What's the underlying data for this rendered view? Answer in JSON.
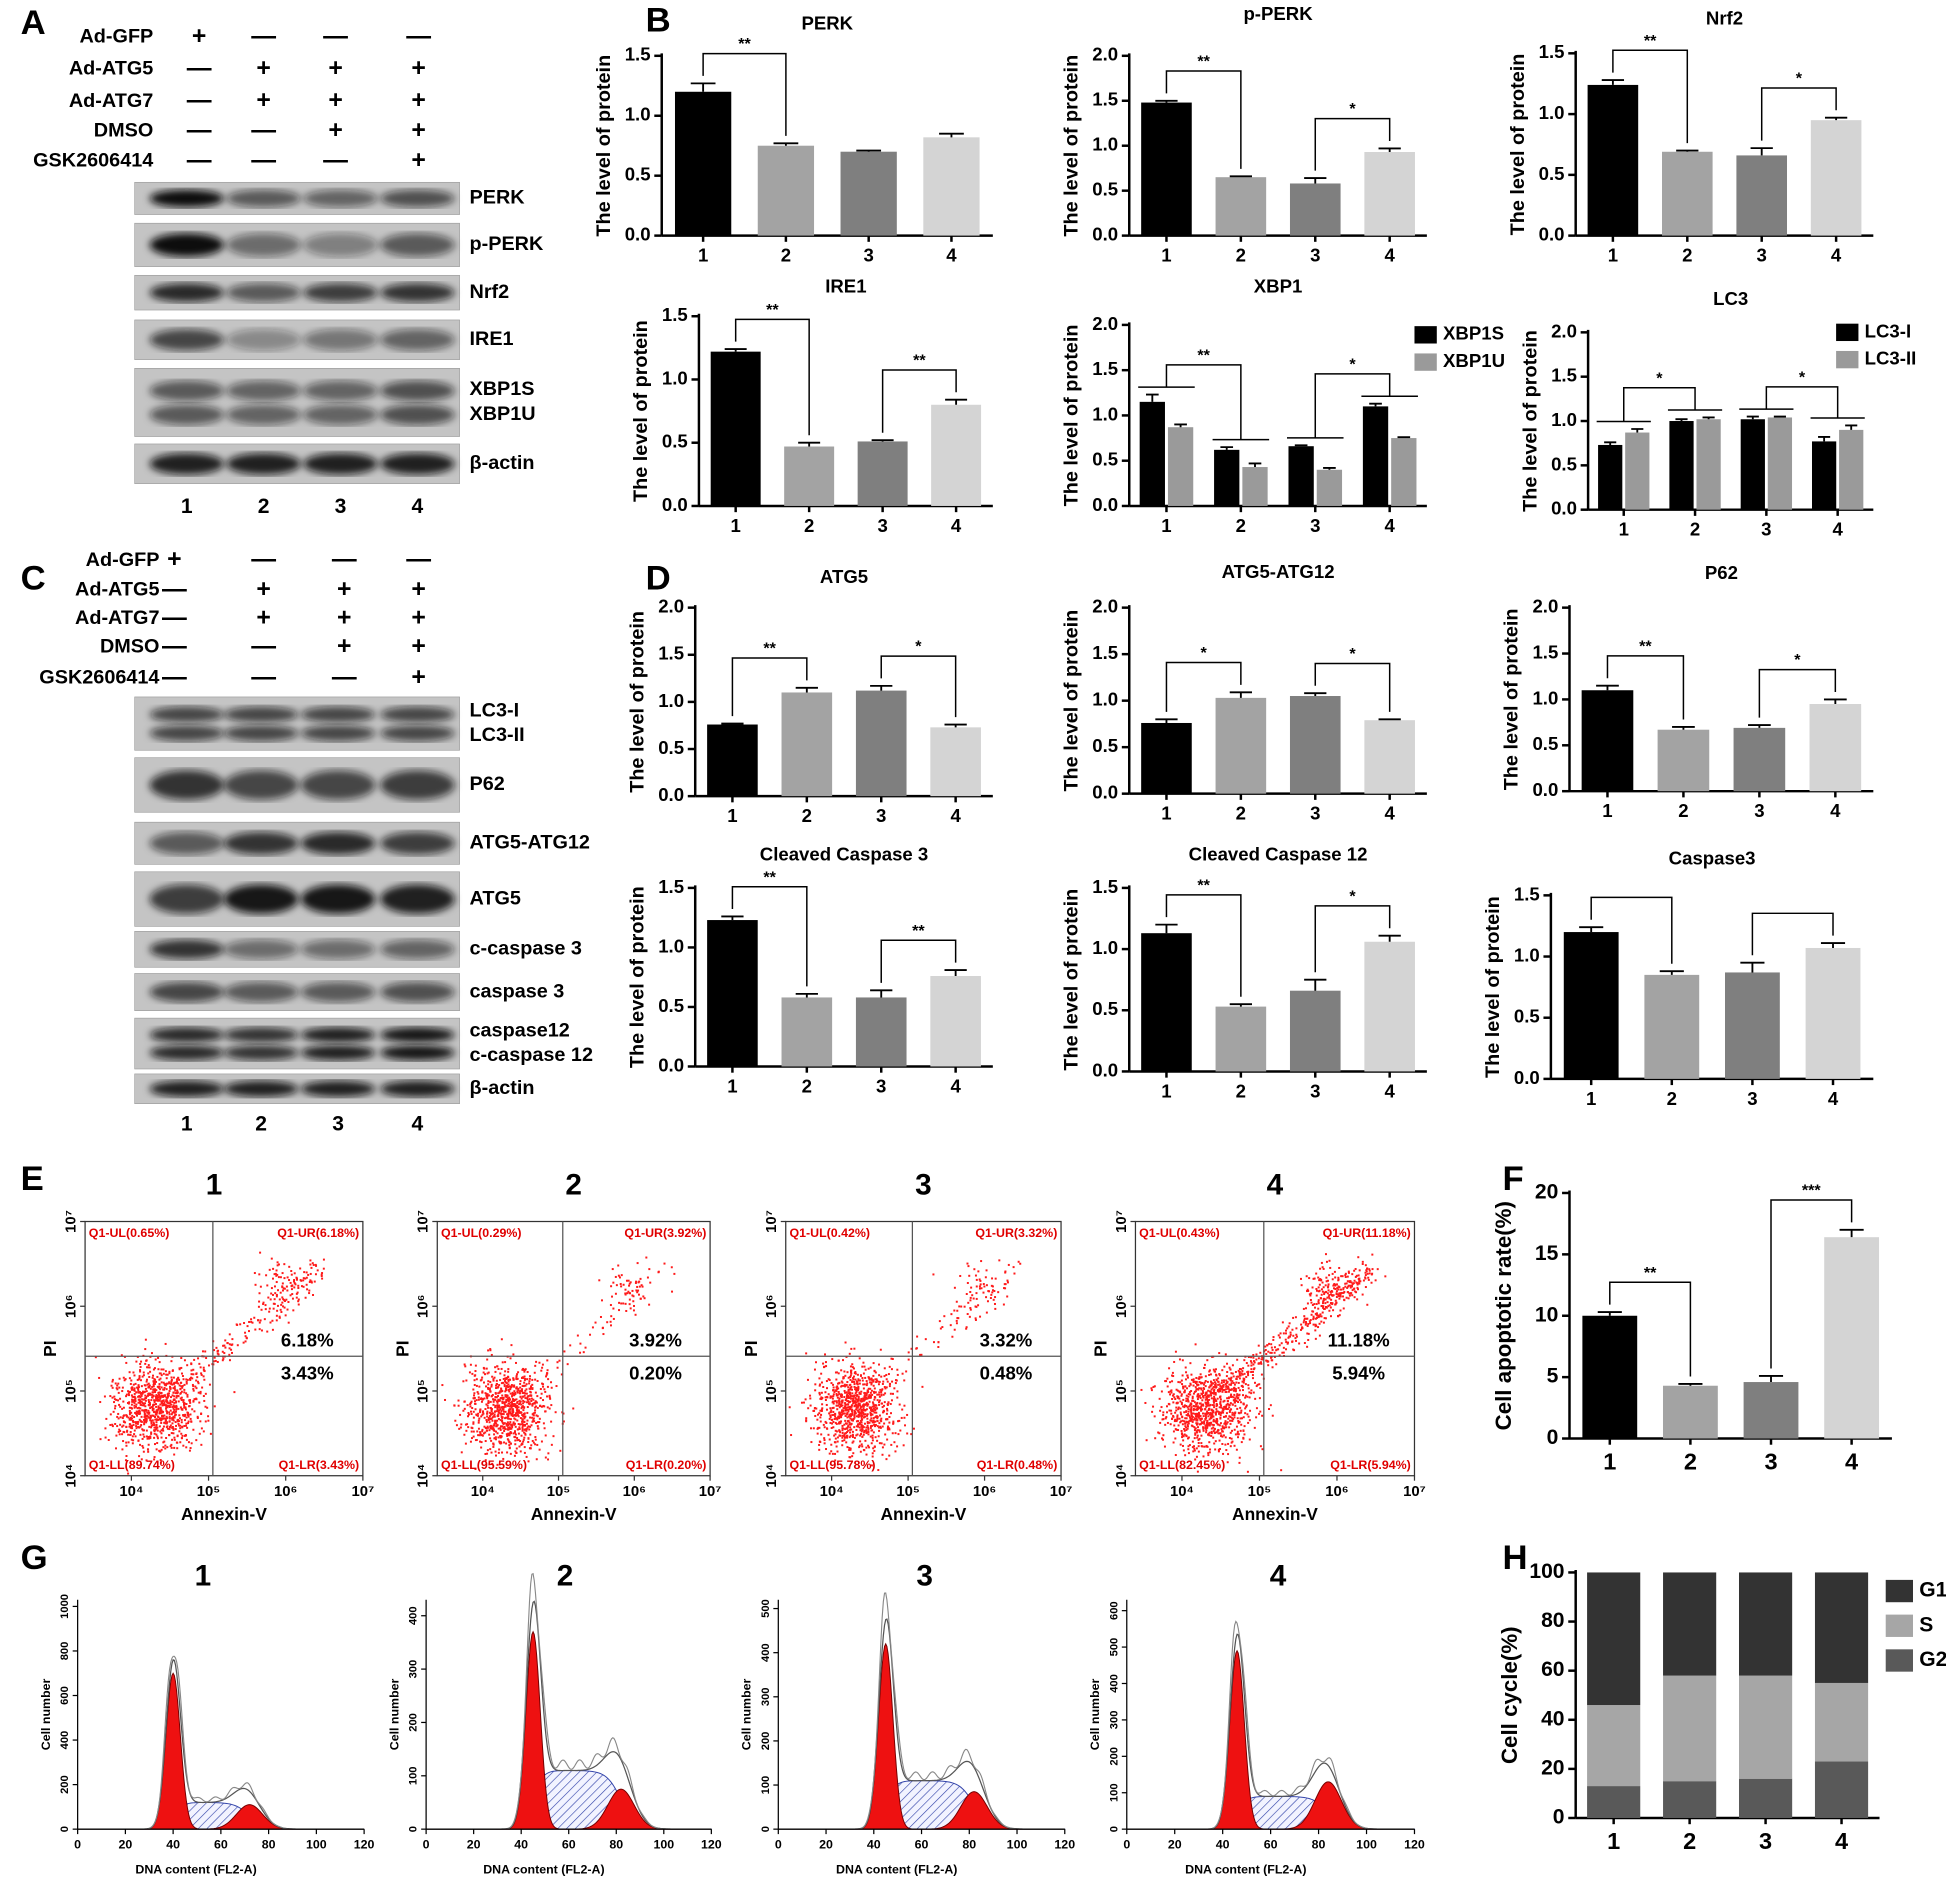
{
  "panel_letters": [
    "A",
    "B",
    "C",
    "D",
    "E",
    "F",
    "G",
    "H"
  ],
  "blots": [
    {
      "conditions": [
        {
          "name": "Ad-GFP",
          "marks": [
            "+",
            "—",
            "—",
            "—"
          ]
        },
        {
          "name": "Ad-ATG5",
          "marks": [
            "—",
            "+",
            "+",
            "+"
          ]
        },
        {
          "name": "Ad-ATG7",
          "marks": [
            "—",
            "+",
            "+",
            "+"
          ]
        },
        {
          "name": "DMSO",
          "marks": [
            "—",
            "—",
            "+",
            "+"
          ]
        },
        {
          "name": "GSK2606414",
          "marks": [
            "—",
            "—",
            "—",
            "+"
          ]
        }
      ],
      "bands": [
        [
          "PERK"
        ],
        [
          "p-PERK"
        ],
        [
          "Nrf2"
        ],
        [
          "IRE1"
        ],
        [
          "XBP1S",
          "XBP1U"
        ],
        [
          "β-actin"
        ]
      ],
      "lanes": [
        "1",
        "2",
        "3",
        "4"
      ]
    },
    {
      "conditions": [
        {
          "name": "Ad-GFP",
          "marks": [
            "+",
            "—",
            "—",
            "—"
          ]
        },
        {
          "name": "Ad-ATG5",
          "marks": [
            "—",
            "+",
            "+",
            "+"
          ]
        },
        {
          "name": "Ad-ATG7",
          "marks": [
            "—",
            "+",
            "+",
            "+"
          ]
        },
        {
          "name": "DMSO",
          "marks": [
            "—",
            "—",
            "+",
            "+"
          ]
        },
        {
          "name": "GSK2606414",
          "marks": [
            "—",
            "—",
            "—",
            "+"
          ]
        }
      ],
      "bands": [
        [
          "LC3-I",
          "LC3-II"
        ],
        [
          "P62"
        ],
        [
          "ATG5-ATG12"
        ],
        [
          "ATG5"
        ],
        [
          "c-caspase 3"
        ],
        [
          "caspase 3"
        ],
        [
          "caspase12",
          "c-caspase 12"
        ],
        [
          "β-actin"
        ]
      ],
      "lanes": [
        "1",
        "2",
        "3",
        "4"
      ]
    }
  ],
  "chart_data": [
    {
      "type": "bar",
      "title": "PERK",
      "y_label": "The level of protein",
      "categories": [
        "1",
        "2",
        "3",
        "4"
      ],
      "values": [
        1.2,
        0.75,
        0.7,
        0.82
      ],
      "errors": [
        0.07,
        0.02,
        0.01,
        0.03
      ],
      "colors": [
        "#000000",
        "#a3a3a3",
        "#7f7f7f",
        "#d4d4d4"
      ],
      "ylim": [
        0,
        1.5
      ],
      "yticks": [
        {
          "value": 0,
          "label": "0.0"
        },
        0.5,
        {
          "value": 1,
          "label": "1.0"
        },
        1.5
      ],
      "brackets": [
        {
          "between": [
            "1",
            "2"
          ],
          "label": "**"
        }
      ]
    },
    {
      "type": "bar",
      "title": "p-PERK",
      "y_label": "The level of protein",
      "categories": [
        "1",
        "2",
        "3",
        "4"
      ],
      "values": [
        1.48,
        0.65,
        0.58,
        0.93
      ],
      "errors": [
        0.02,
        0.01,
        0.06,
        0.04
      ],
      "colors": [
        "#000000",
        "#a3a3a3",
        "#7f7f7f",
        "#d4d4d4"
      ],
      "ylim": [
        0,
        2
      ],
      "yticks": [
        {
          "value": 0,
          "label": "0.0"
        },
        0.5,
        {
          "value": 1,
          "label": "1.0"
        },
        1.5,
        {
          "value": 2,
          "label": "2.0"
        }
      ],
      "brackets": [
        {
          "between": [
            "1",
            "2"
          ],
          "label": "**"
        },
        {
          "between": [
            "3",
            "4"
          ],
          "label": "*"
        }
      ]
    },
    {
      "type": "bar",
      "title": "Nrf2",
      "y_label": "The level of protein",
      "categories": [
        "1",
        "2",
        "3",
        "4"
      ],
      "values": [
        1.24,
        0.69,
        0.66,
        0.95
      ],
      "errors": [
        0.04,
        0.01,
        0.06,
        0.02
      ],
      "colors": [
        "#000000",
        "#a3a3a3",
        "#7f7f7f",
        "#d4d4d4"
      ],
      "ylim": [
        0,
        1.5
      ],
      "yticks": [
        {
          "value": 0,
          "label": "0.0"
        },
        0.5,
        {
          "value": 1,
          "label": "1.0"
        },
        1.5
      ],
      "brackets": [
        {
          "between": [
            "1",
            "2"
          ],
          "label": "**"
        },
        {
          "between": [
            "3",
            "4"
          ],
          "label": "*"
        }
      ]
    },
    {
      "type": "bar",
      "title": "IRE1",
      "y_label": "The level of protein",
      "categories": [
        "1",
        "2",
        "3",
        "4"
      ],
      "values": [
        1.22,
        0.47,
        0.51,
        0.8
      ],
      "errors": [
        0.02,
        0.03,
        0.01,
        0.04
      ],
      "colors": [
        "#000000",
        "#a3a3a3",
        "#7f7f7f",
        "#d4d4d4"
      ],
      "ylim": [
        0,
        1.5
      ],
      "yticks": [
        {
          "value": 0,
          "label": "0.0"
        },
        0.5,
        {
          "value": 1,
          "label": "1.0"
        },
        1.5
      ],
      "brackets": [
        {
          "between": [
            "1",
            "2"
          ],
          "label": "**"
        },
        {
          "between": [
            "3",
            "4"
          ],
          "label": "**"
        }
      ]
    },
    {
      "type": "grouped_bar",
      "title": "XBP1",
      "y_label": "The level of protein",
      "categories": [
        "1",
        "2",
        "3",
        "4"
      ],
      "series": [
        {
          "name": "XBP1S",
          "color": "#000000",
          "values": [
            1.15,
            0.62,
            0.66,
            1.1
          ],
          "errors": [
            0.08,
            0.03,
            0.01,
            0.03
          ]
        },
        {
          "name": "XBP1U",
          "color": "#9a9a9a",
          "values": [
            0.87,
            0.43,
            0.4,
            0.75
          ],
          "errors": [
            0.03,
            0.04,
            0.02,
            0.01
          ]
        }
      ],
      "ylim": [
        0,
        2
      ],
      "yticks": [
        {
          "value": 0,
          "label": "0.0"
        },
        0.5,
        {
          "value": 1,
          "label": "1.0"
        },
        1.5,
        {
          "value": 2,
          "label": "2.0"
        }
      ],
      "brackets": [
        {
          "between": [
            "1",
            "2"
          ],
          "label": "**"
        },
        {
          "between": [
            "3",
            "4"
          ],
          "label": "*"
        }
      ]
    },
    {
      "type": "grouped_bar",
      "title": "LC3",
      "y_label": "The level of protein",
      "categories": [
        "1",
        "2",
        "3",
        "4"
      ],
      "series": [
        {
          "name": "LC3-I",
          "color": "#000000",
          "values": [
            0.73,
            1.0,
            1.02,
            0.77
          ],
          "errors": [
            0.03,
            0.02,
            0.03,
            0.05
          ]
        },
        {
          "name": "LC3-II",
          "color": "#9a9a9a",
          "values": [
            0.87,
            1.02,
            1.04,
            0.9
          ],
          "errors": [
            0.04,
            0.02,
            0.01,
            0.05
          ]
        }
      ],
      "ylim": [
        0,
        2
      ],
      "yticks": [
        {
          "value": 0,
          "label": "0.0"
        },
        0.5,
        {
          "value": 1,
          "label": "1.0"
        },
        1.5,
        {
          "value": 2,
          "label": "2.0"
        }
      ],
      "brackets": [
        {
          "between": [
            "1",
            "2"
          ],
          "label": "*"
        },
        {
          "between": [
            "3",
            "4"
          ],
          "label": "*"
        }
      ]
    },
    {
      "type": "bar",
      "title": "ATG5",
      "y_label": "The level of protein",
      "categories": [
        "1",
        "2",
        "3",
        "4"
      ],
      "values": [
        0.76,
        1.1,
        1.12,
        0.73
      ],
      "errors": [
        0.01,
        0.05,
        0.05,
        0.03
      ],
      "colors": [
        "#000000",
        "#a3a3a3",
        "#7f7f7f",
        "#d4d4d4"
      ],
      "ylim": [
        0,
        2
      ],
      "yticks": [
        {
          "value": 0,
          "label": "0.0"
        },
        0.5,
        {
          "value": 1,
          "label": "1.0"
        },
        1.5,
        {
          "value": 2,
          "label": "2.0"
        }
      ],
      "brackets": [
        {
          "between": [
            "1",
            "2"
          ],
          "label": "**"
        },
        {
          "between": [
            "3",
            "4"
          ],
          "label": "*"
        }
      ]
    },
    {
      "type": "bar",
      "title": "ATG5-ATG12",
      "y_label": "The level of protein",
      "categories": [
        "1",
        "2",
        "3",
        "4"
      ],
      "values": [
        0.76,
        1.03,
        1.05,
        0.79
      ],
      "errors": [
        0.04,
        0.06,
        0.03,
        0.01
      ],
      "colors": [
        "#000000",
        "#a3a3a3",
        "#7f7f7f",
        "#d4d4d4"
      ],
      "ylim": [
        0,
        2
      ],
      "yticks": [
        {
          "value": 0,
          "label": "0.0"
        },
        0.5,
        {
          "value": 1,
          "label": "1.0"
        },
        1.5,
        {
          "value": 2,
          "label": "2.0"
        }
      ],
      "brackets": [
        {
          "between": [
            "1",
            "2"
          ],
          "label": "*"
        },
        {
          "between": [
            "3",
            "4"
          ],
          "label": "*"
        }
      ]
    },
    {
      "type": "bar",
      "title": "P62",
      "y_label": "The level of protein",
      "categories": [
        "1",
        "2",
        "3",
        "4"
      ],
      "values": [
        1.1,
        0.67,
        0.69,
        0.95
      ],
      "errors": [
        0.05,
        0.03,
        0.03,
        0.05
      ],
      "colors": [
        "#000000",
        "#a3a3a3",
        "#7f7f7f",
        "#d4d4d4"
      ],
      "ylim": [
        0,
        2
      ],
      "yticks": [
        {
          "value": 0,
          "label": "0.0"
        },
        0.5,
        {
          "value": 1,
          "label": "1.0"
        },
        1.5,
        {
          "value": 2,
          "label": "2.0"
        }
      ],
      "brackets": [
        {
          "between": [
            "1",
            "2"
          ],
          "label": "**"
        },
        {
          "between": [
            "3",
            "4"
          ],
          "label": "*"
        }
      ]
    },
    {
      "type": "bar",
      "title": "Cleaved Caspase 3",
      "y_label": "The level of protein",
      "categories": [
        "1",
        "2",
        "3",
        "4"
      ],
      "values": [
        1.23,
        0.58,
        0.58,
        0.76
      ],
      "errors": [
        0.03,
        0.03,
        0.06,
        0.05
      ],
      "colors": [
        "#000000",
        "#a3a3a3",
        "#7f7f7f",
        "#d4d4d4"
      ],
      "ylim": [
        0,
        1.5
      ],
      "yticks": [
        {
          "value": 0,
          "label": "0.0"
        },
        0.5,
        {
          "value": 1,
          "label": "1.0"
        },
        1.5
      ],
      "brackets": [
        {
          "between": [
            "1",
            "2"
          ],
          "label": "**"
        },
        {
          "between": [
            "3",
            "4"
          ],
          "label": "**"
        }
      ]
    },
    {
      "type": "bar",
      "title": "Cleaved Caspase 12",
      "y_label": "The level of protein",
      "categories": [
        "1",
        "2",
        "3",
        "4"
      ],
      "values": [
        1.13,
        0.53,
        0.66,
        1.06
      ],
      "errors": [
        0.07,
        0.02,
        0.09,
        0.05
      ],
      "colors": [
        "#000000",
        "#a3a3a3",
        "#7f7f7f",
        "#d4d4d4"
      ],
      "ylim": [
        0,
        1.5
      ],
      "yticks": [
        {
          "value": 0,
          "label": "0.0"
        },
        0.5,
        {
          "value": 1,
          "label": "1.0"
        },
        1.5
      ],
      "brackets": [
        {
          "between": [
            "1",
            "2"
          ],
          "label": "**"
        },
        {
          "between": [
            "3",
            "4"
          ],
          "label": "*"
        }
      ]
    },
    {
      "type": "bar",
      "title": "Caspase3",
      "y_label": "The level of protein",
      "categories": [
        "1",
        "2",
        "3",
        "4"
      ],
      "values": [
        1.2,
        0.85,
        0.87,
        1.07
      ],
      "errors": [
        0.04,
        0.03,
        0.08,
        0.04
      ],
      "colors": [
        "#000000",
        "#a3a3a3",
        "#7f7f7f",
        "#d4d4d4"
      ],
      "ylim": [
        0,
        1.5
      ],
      "yticks": [
        {
          "value": 0,
          "label": "0.0"
        },
        0.5,
        {
          "value": 1,
          "label": "1.0"
        },
        1.5
      ],
      "brackets": [
        {
          "between": [
            "1",
            "2"
          ]
        },
        {
          "between": [
            "3",
            "4"
          ]
        }
      ]
    },
    {
      "type": "bar",
      "y_label": "Cell apoptotic rate(%)",
      "categories": [
        "1",
        "2",
        "3",
        "4"
      ],
      "values": [
        10,
        4.3,
        4.6,
        16.4
      ],
      "errors": [
        0.3,
        0.15,
        0.5,
        0.6
      ],
      "colors": [
        "#000000",
        "#a3a3a3",
        "#7f7f7f",
        "#d4d4d4"
      ],
      "ylim": [
        0,
        20
      ],
      "yticks": [
        0,
        5,
        10,
        15,
        20
      ],
      "brackets": [
        {
          "between": [
            "1",
            "2"
          ],
          "label": "**"
        },
        {
          "between": [
            "3",
            "4"
          ],
          "label": "***"
        }
      ]
    },
    {
      "type": "stacked_bar",
      "y_label": "Cell cycle(%)",
      "categories": [
        "1",
        "2",
        "3",
        "4"
      ],
      "series": [
        {
          "name": "G1",
          "color": "#333333",
          "values": [
            54,
            42,
            42,
            45
          ]
        },
        {
          "name": "S",
          "color": "#a6a6a6",
          "values": [
            33,
            43,
            42,
            32
          ]
        },
        {
          "name": "G2",
          "color": "#595959",
          "values": [
            13,
            15,
            16,
            23
          ]
        }
      ],
      "ylim": [
        0,
        100
      ],
      "yticks": [
        0,
        20,
        40,
        60,
        80,
        100
      ]
    }
  ],
  "flow_cytometry": {
    "x_label": "Annexin-V",
    "y_label": "PI",
    "xlim": [
      3.4,
      7
    ],
    "ylim": [
      4,
      7
    ],
    "xticks": [
      {
        "value": 4,
        "label": "10⁴"
      },
      {
        "value": 5,
        "label": "10⁵"
      },
      {
        "value": 6,
        "label": "10⁶"
      },
      {
        "value": 7,
        "label": "10⁷"
      }
    ],
    "yticks": [
      {
        "value": 4,
        "label": "10⁴"
      },
      {
        "value": 5,
        "label": "10⁵"
      },
      {
        "value": 6,
        "label": "10⁶"
      },
      {
        "value": 7,
        "label": "10⁷"
      }
    ],
    "plots": [
      {
        "title": "1",
        "UL": "Q1-UL(0.65%)",
        "UR": "Q1-UR(6.18%)",
        "LL": "Q1-LL(89.74%)",
        "LR": "Q1-LR(3.43%)",
        "upper": "6.18%",
        "lower": "3.43%"
      },
      {
        "title": "2",
        "UL": "Q1-UL(0.29%)",
        "UR": "Q1-UR(3.92%)",
        "LL": "Q1-LL(95.59%)",
        "LR": "Q1-LR(0.20%)",
        "upper": "3.92%",
        "lower": "0.20%"
      },
      {
        "title": "3",
        "UL": "Q1-UL(0.42%)",
        "UR": "Q1-UR(3.32%)",
        "LL": "Q1-LL(95.78%)",
        "LR": "Q1-LR(0.48%)",
        "upper": "3.32%",
        "lower": "0.48%"
      },
      {
        "title": "4",
        "UL": "Q1-UL(0.43%)",
        "UR": "Q1-UR(11.18%)",
        "LL": "Q1-LL(82.45%)",
        "LR": "Q1-LR(5.94%)",
        "upper": "11.18%",
        "lower": "5.94%"
      }
    ]
  },
  "cell_cycle_histograms": {
    "x_label": "DNA content (FL2-A)",
    "y_label": "Cell number",
    "xlim": [
      0,
      120
    ],
    "xticks": [
      0,
      20,
      40,
      60,
      80,
      100,
      120
    ],
    "plots": [
      {
        "title": "1",
        "ylim": [
          0,
          1030
        ],
        "yticks": [
          0,
          200,
          400,
          600,
          800,
          1000
        ]
      },
      {
        "title": "2",
        "ylim": [
          0,
          430
        ],
        "yticks": [
          0,
          100,
          200,
          300,
          400
        ]
      },
      {
        "title": "3",
        "ylim": [
          0,
          520
        ],
        "yticks": [
          0,
          100,
          200,
          300,
          400,
          500
        ]
      },
      {
        "title": "4",
        "ylim": [
          0,
          630
        ],
        "yticks": [
          0,
          100,
          200,
          300,
          400,
          500,
          600
        ]
      }
    ]
  }
}
